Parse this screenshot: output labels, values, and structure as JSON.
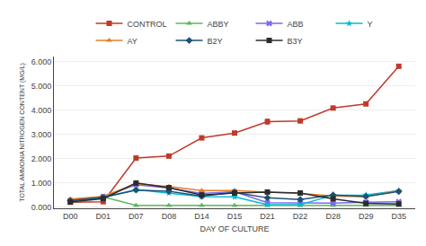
{
  "chart_data": {
    "type": "line",
    "xlabel": "DAY OF CULTURE",
    "ylabel": "TOTAL AMMONIA NITROGEN CONTENT (MG/L)",
    "categories": [
      "D00",
      "D01",
      "D07",
      "D08",
      "D14",
      "D15",
      "D21",
      "D22",
      "D28",
      "D29",
      "D35"
    ],
    "series": [
      {
        "name": "CONTROL",
        "color": "#c0392b",
        "marker": "square",
        "values": [
          0.2,
          0.22,
          2.02,
          2.1,
          2.85,
          3.05,
          3.52,
          3.55,
          4.08,
          4.25,
          5.8
        ],
        "yerr": [
          0.02,
          0.02,
          0.05,
          0.05,
          0.05,
          0.05,
          0.1,
          0.05,
          0.05,
          0.05,
          0.05
        ]
      },
      {
        "name": "ABBY",
        "color": "#5cb85c",
        "marker": "triangle-up",
        "values": [
          0.31,
          0.42,
          0.07,
          0.07,
          0.07,
          0.07,
          0.07,
          0.07,
          0.07,
          0.07,
          0.07
        ],
        "yerr": [
          0.02,
          0.02,
          0.01,
          0.01,
          0.01,
          0.01,
          0.01,
          0.01,
          0.01,
          0.01,
          0.01
        ]
      },
      {
        "name": "ABB",
        "color": "#7B68EE",
        "marker": "x",
        "values": [
          0.28,
          0.43,
          0.92,
          0.78,
          0.56,
          0.63,
          0.18,
          0.17,
          0.16,
          0.2,
          0.22
        ],
        "yerr": [
          0.02,
          0.02,
          0.04,
          0.03,
          0.03,
          0.03,
          0.02,
          0.02,
          0.02,
          0.02,
          0.02
        ]
      },
      {
        "name": "Y",
        "color": "#00bcd4",
        "marker": "star",
        "values": [
          0.25,
          0.39,
          0.72,
          0.58,
          0.43,
          0.42,
          0.1,
          0.1,
          0.49,
          0.5,
          0.68
        ],
        "yerr": [
          0.02,
          0.02,
          0.04,
          0.03,
          0.02,
          0.02,
          0.01,
          0.02,
          0.03,
          0.03,
          0.04
        ]
      },
      {
        "name": "AY",
        "color": "#e67e22",
        "marker": "triangle-up",
        "values": [
          0.33,
          0.44,
          0.96,
          0.85,
          0.68,
          0.68,
          0.62,
          0.56,
          0.46,
          0.42,
          0.68
        ],
        "yerr": [
          0.02,
          0.02,
          0.04,
          0.03,
          0.03,
          0.03,
          0.03,
          0.03,
          0.02,
          0.02,
          0.04
        ]
      },
      {
        "name": "B2Y",
        "color": "#1a5276",
        "marker": "diamond",
        "values": [
          0.26,
          0.4,
          0.7,
          0.65,
          0.45,
          0.61,
          0.38,
          0.31,
          0.5,
          0.44,
          0.64
        ],
        "yerr": [
          0.02,
          0.02,
          0.03,
          0.03,
          0.02,
          0.03,
          0.02,
          0.02,
          0.03,
          0.02,
          0.04
        ]
      },
      {
        "name": "B3Y",
        "color": "#2c2c2c",
        "marker": "square",
        "values": [
          0.21,
          0.35,
          0.99,
          0.8,
          0.5,
          0.58,
          0.62,
          0.58,
          0.34,
          0.15,
          0.13
        ],
        "yerr": [
          0.02,
          0.02,
          0.04,
          0.03,
          0.02,
          0.03,
          0.03,
          0.03,
          0.02,
          0.01,
          0.01
        ]
      }
    ],
    "ylim": [
      -0.05,
      6.2
    ],
    "yticks": [
      {
        "value": 0,
        "label": "0.000"
      },
      {
        "value": 1,
        "label": "1.000"
      },
      {
        "value": 2,
        "label": "2.000"
      },
      {
        "value": 3,
        "label": "3.000"
      },
      {
        "value": 4,
        "label": "4.000"
      },
      {
        "value": 5,
        "label": "5.000"
      },
      {
        "value": 6,
        "label": "6.000"
      }
    ],
    "grid": true,
    "legend": "top"
  }
}
